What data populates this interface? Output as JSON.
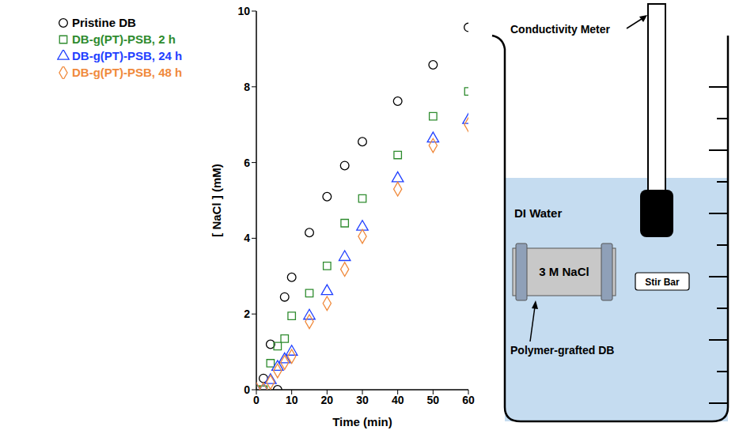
{
  "chart_data": {
    "type": "scatter",
    "x_label": "Time (min)",
    "y_label": "[ NaCl ] (mM)",
    "xlim": [
      0,
      60
    ],
    "xticks": [
      0,
      10,
      20,
      30,
      40,
      50,
      60
    ],
    "ylim": [
      0,
      10
    ],
    "yticks": [
      0,
      2,
      4,
      6,
      8,
      10
    ],
    "grid": false,
    "legend": "upper left",
    "x": [
      0,
      2,
      4,
      6,
      8,
      10,
      15,
      20,
      25,
      30,
      40,
      50,
      60
    ],
    "series": [
      {
        "name": "Pristine DB",
        "color": "#000000",
        "marker": "circle",
        "values": [
          0,
          0.3,
          1.2,
          0,
          2.45,
          2.97,
          4.15,
          5.1,
          5.92,
          6.55,
          7.62,
          8.58,
          9.57
        ]
      },
      {
        "name": "DB-g(PT)-PSB, 2 h",
        "color": "#2e8b2e",
        "marker": "square",
        "values": [
          0,
          0,
          0.7,
          1.15,
          1.35,
          1.95,
          2.55,
          3.27,
          4.4,
          5.05,
          6.2,
          7.22,
          7.88
        ]
      },
      {
        "name": "DB-g(PT)-PSB, 24 h",
        "color": "#1f3fff",
        "marker": "triangle",
        "values": [
          0,
          0,
          0.25,
          0.6,
          0.8,
          1.0,
          1.95,
          2.6,
          3.5,
          4.3,
          5.58,
          6.63,
          7.12
        ]
      },
      {
        "name": "DB-g(PT)-PSB, 48 h",
        "color": "#f08a3c",
        "marker": "diamond",
        "values": [
          0,
          0,
          0.2,
          0.5,
          0.72,
          0.88,
          1.8,
          2.28,
          3.18,
          4.05,
          5.3,
          6.45,
          7.0
        ]
      }
    ]
  },
  "diagram": {
    "labels": {
      "meter": "Conductivity Meter",
      "water": "DI Water",
      "sample": "3 M NaCl",
      "stir_bar": "Stir Bar",
      "membrane": "Polymer-grafted DB"
    }
  }
}
